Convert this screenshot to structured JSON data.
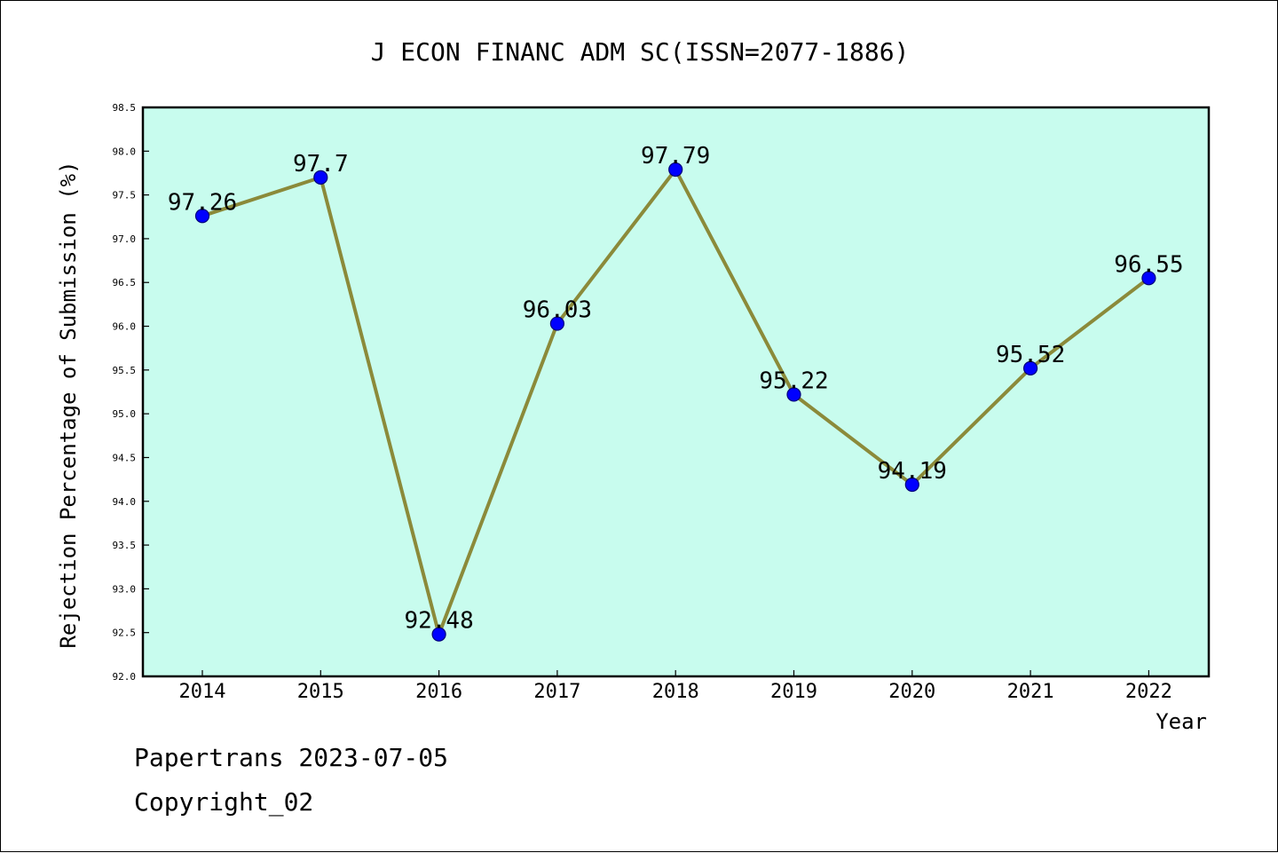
{
  "chart_data": {
    "type": "line",
    "title": "J ECON FINANC ADM SC(ISSN=2077-1886)",
    "xlabel": "Year",
    "ylabel": "Rejection Percentage of Submission (%)",
    "x": [
      "2014",
      "2015",
      "2016",
      "2017",
      "2018",
      "2019",
      "2020",
      "2021",
      "2022"
    ],
    "values": [
      97.26,
      97.7,
      92.48,
      96.03,
      97.79,
      95.22,
      94.19,
      95.52,
      96.55
    ],
    "data_labels": [
      "97.26",
      "97.7",
      "92.48",
      "96.03",
      "97.79",
      "95.22",
      "94.19",
      "95.52",
      "96.55"
    ],
    "ylim": [
      92.0,
      98.5
    ],
    "yticks": [
      "92.0",
      "92.5",
      "93.0",
      "93.5",
      "94.0",
      "94.5",
      "95.0",
      "95.5",
      "96.0",
      "96.5",
      "97.0",
      "97.5",
      "98.0",
      "98.5"
    ],
    "grid": false,
    "colors": {
      "plot_background": "#c8fcee",
      "line": "#8b8a3a",
      "marker": "#0000ff",
      "marker_edge": "#00007a"
    }
  },
  "footer": {
    "line1": "Papertrans 2023-07-05",
    "line2": "Copyright_02"
  }
}
